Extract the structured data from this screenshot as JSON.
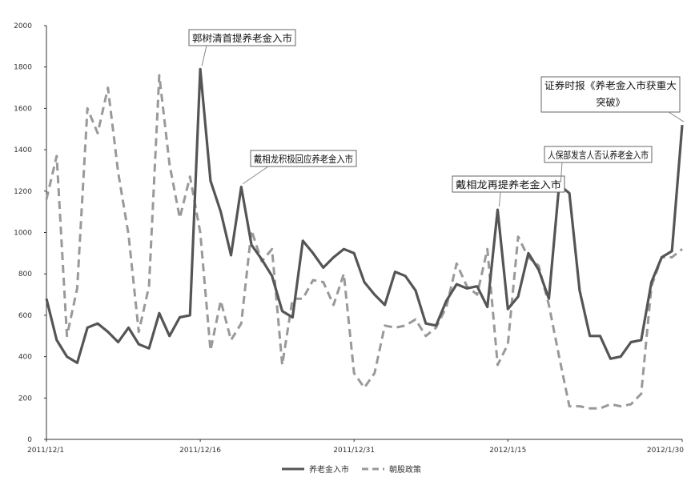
{
  "chart_data": {
    "type": "line",
    "title": "",
    "xlabel": "",
    "ylabel": "",
    "ylim": [
      0,
      2000
    ],
    "yticks": [
      0,
      200,
      400,
      600,
      800,
      1000,
      1200,
      1400,
      1600,
      1800,
      2000
    ],
    "x_tick_labels": [
      "2011/12/1",
      "2011/12/16",
      "2011/12/31",
      "2012/1/15",
      "2012/1/30"
    ],
    "grid": false,
    "legend_position": "bottom",
    "series": [
      {
        "name": "养老金入市",
        "color": "#555555",
        "style": "solid",
        "values": [
          680,
          480,
          400,
          370,
          540,
          560,
          520,
          470,
          540,
          460,
          440,
          610,
          500,
          590,
          600,
          1790,
          1250,
          1100,
          890,
          1220,
          940,
          870,
          790,
          620,
          590,
          960,
          900,
          830,
          880,
          920,
          900,
          760,
          700,
          650,
          810,
          790,
          720,
          560,
          550,
          670,
          750,
          730,
          740,
          640,
          1110,
          630,
          690,
          900,
          820,
          680,
          1230,
          1190,
          720,
          500,
          500,
          390,
          400,
          470,
          480,
          760,
          880,
          910,
          1520
        ]
      },
      {
        "name": "朝股政策",
        "color": "#999999",
        "style": "dashed",
        "values": [
          1160,
          1370,
          500,
          730,
          1600,
          1480,
          1700,
          1290,
          990,
          520,
          740,
          1760,
          1330,
          1070,
          1270,
          1000,
          430,
          670,
          480,
          560,
          1010,
          860,
          920,
          360,
          680,
          680,
          770,
          760,
          650,
          800,
          320,
          250,
          320,
          550,
          540,
          550,
          580,
          500,
          540,
          640,
          850,
          740,
          700,
          920,
          360,
          460,
          980,
          880,
          840,
          650,
          400,
          160,
          160,
          150,
          150,
          170,
          160,
          170,
          220,
          740,
          880,
          880,
          920
        ]
      }
    ],
    "annotations": [
      {
        "text": "郭树清首提养老金入市",
        "index": 15
      },
      {
        "text": "戴相龙积极回应养老金入市",
        "index": 19
      },
      {
        "text": "戴相龙再提养老金入市",
        "index": 44
      },
      {
        "text": "人保部发言人否认养老金入市",
        "index": 50
      },
      {
        "text": "证券时报《养老金入市获重大",
        "text2": "突破》",
        "index": 62
      }
    ]
  }
}
